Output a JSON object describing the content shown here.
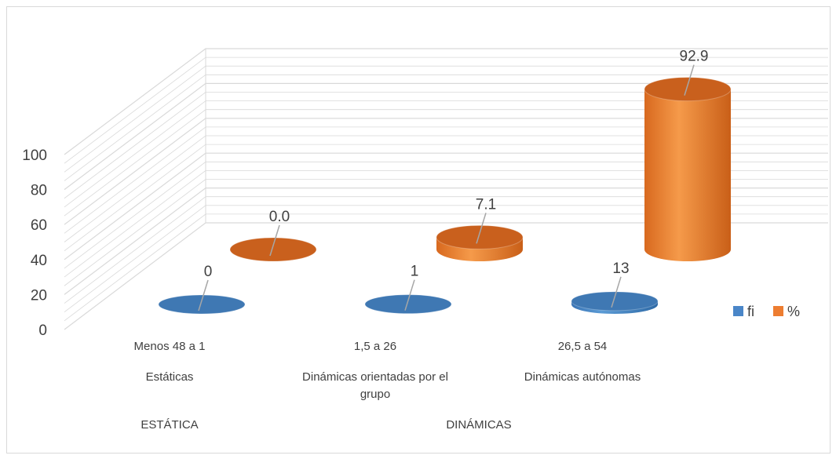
{
  "chart_data": {
    "type": "bar",
    "subtype": "3d-cylinder",
    "title": "",
    "xlabel": "",
    "ylabel": "",
    "ylim": [
      0,
      100
    ],
    "y_ticks": [
      "0",
      "20",
      "40",
      "60",
      "80",
      "100"
    ],
    "grid": true,
    "legend_position": "right",
    "category_levels": [
      [
        "Menos 48 a 1",
        "1,5 a 26",
        "26,5 a 54"
      ],
      [
        "Estáticas",
        "Dinámicas orientadas por el grupo",
        "Dinámicas autónomas"
      ],
      [
        "ESTÁTICA",
        "DINÁMICAS"
      ]
    ],
    "categories": [
      "Menos 48 a 1",
      "1,5 a 26",
      "26,5 a 54"
    ],
    "series": [
      {
        "name": "fi",
        "values": [
          0,
          1,
          13
        ],
        "labels": [
          "0",
          "1",
          "13"
        ],
        "color": "#4a86c8"
      },
      {
        "name": "%",
        "values": [
          0.0,
          7.1,
          92.9
        ],
        "labels": [
          "0.0",
          "7.1",
          "92.9"
        ],
        "color": "#ed7d31"
      }
    ]
  }
}
